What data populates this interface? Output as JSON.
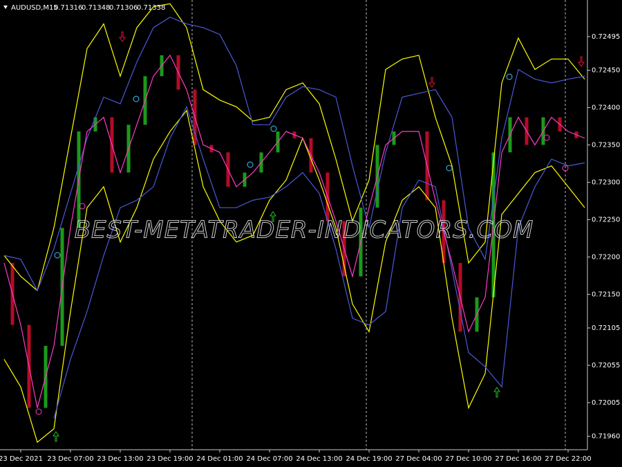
{
  "chart_data": {
    "type": "line",
    "symbol": "AUDUSD,M15",
    "ohlc": [
      0.71316,
      0.71348,
      0.71306,
      0.71338
    ],
    "watermark": "BEST-METATRADER-INDICATORS.COM",
    "categories": [
      null,
      "23 Dec 2021",
      null,
      null,
      "23 Dec 07:00",
      null,
      null,
      "23 Dec 13:00",
      null,
      null,
      "23 Dec 19:00",
      null,
      null,
      "24 Dec 01:00",
      null,
      null,
      "24 Dec 07:00",
      null,
      null,
      "24 Dec 13:00",
      null,
      null,
      "24 Dec 19:00",
      null,
      null,
      "27 Dec 04:00",
      null,
      null,
      "27 Dec 10:00",
      null,
      null,
      "27 Dec 16:00",
      null,
      null,
      "27 Dec 22:00",
      null
    ],
    "series": [
      {
        "color": "#ffff00",
        "values": [
          0.72202,
          0.72174,
          0.72155,
          0.72239,
          0.72359,
          0.72479,
          0.72512,
          0.72442,
          0.72507,
          0.72535,
          0.72539,
          0.72507,
          0.72424,
          0.7241,
          0.72401,
          0.72382,
          0.72387,
          0.72424,
          0.72433,
          0.72405,
          0.72331,
          0.72248,
          0.72303,
          0.72451,
          0.72465,
          0.7247,
          0.72387,
          0.72322,
          0.72192,
          0.7222,
          0.72433,
          0.72493,
          0.72451,
          0.72465,
          0.72465,
          0.72438
        ]
      },
      {
        "color": "#ffff00",
        "values": [
          0.72063,
          0.72026,
          0.71952,
          0.7197,
          0.72127,
          0.72266,
          0.72294,
          0.7222,
          0.72266,
          0.72331,
          0.72368,
          0.72396,
          0.72294,
          0.72248,
          0.7222,
          0.72229,
          0.72276,
          0.72303,
          0.72359,
          0.72303,
          0.72239,
          0.72137,
          0.721,
          0.7222,
          0.72276,
          0.72294,
          0.72266,
          0.72118,
          0.71998,
          0.72044,
          0.72257,
          0.72285,
          0.72313,
          0.72322,
          0.72294,
          0.72266
        ]
      },
      {
        "color": "#4a5ad8",
        "values": [
          0.72202,
          0.72197,
          0.72155,
          0.72211,
          0.72285,
          0.72359,
          0.72414,
          0.72405,
          0.72461,
          0.72507,
          0.72521,
          0.72512,
          0.72507,
          0.72498,
          0.72456,
          0.72377,
          0.72377,
          0.72414,
          0.72428,
          0.72424,
          0.72414,
          0.72322,
          0.72239,
          0.7234,
          0.72414,
          0.72419,
          0.72424,
          0.72387,
          0.72239,
          0.72197,
          0.72359,
          0.72451,
          0.72438,
          0.72433,
          0.72438,
          0.72442
        ]
      },
      {
        "color": "#4a5ad8",
        "values": [
          null,
          null,
          null,
          0.71984,
          0.72063,
          0.72127,
          0.72202,
          0.72266,
          0.72276,
          0.72294,
          0.72359,
          0.72401,
          0.72331,
          0.72266,
          0.72266,
          0.72276,
          0.7228,
          0.72294,
          0.72313,
          0.72285,
          0.72211,
          0.72118,
          0.72109,
          0.72127,
          0.72266,
          0.72303,
          0.72294,
          0.72183,
          0.72072,
          0.72053,
          0.72026,
          0.72239,
          0.72294,
          0.72331,
          0.72322,
          0.72326
        ]
      },
      {
        "color": "#ff3cc8",
        "values": [
          0.72192,
          0.72109,
          0.71998,
          0.72081,
          0.72239,
          0.72368,
          0.72387,
          0.72313,
          0.72377,
          0.72442,
          0.7247,
          0.72424,
          0.7235,
          0.7234,
          0.72294,
          0.72313,
          0.7234,
          0.72368,
          0.72359,
          0.72313,
          0.72248,
          0.72174,
          0.72266,
          0.7235,
          0.72368,
          0.72368,
          0.72276,
          0.72192,
          0.721,
          0.72146,
          0.7234,
          0.72387,
          0.7235,
          0.72387,
          0.72368,
          0.72359
        ]
      }
    ],
    "up_color": "#22c022",
    "down_color": "#e01030",
    "ylim": [
      0.71942,
      0.72544
    ],
    "yticks": [
      0.72495,
      {
        "value": 0.7245,
        "label": "0.72450"
      },
      {
        "value": 0.724,
        "label": "0.72400"
      },
      {
        "value": 0.7235,
        "label": "0.72350"
      },
      {
        "value": 0.723,
        "label": "0.72300"
      },
      {
        "value": 0.7225,
        "label": "0.72250"
      },
      {
        "value": 0.722,
        "label": "0.72200"
      },
      {
        "value": 0.7215,
        "label": "0.72150"
      },
      0.72105,
      0.72055,
      0.72005,
      {
        "value": 0.7196,
        "label": "0.71960"
      }
    ],
    "grid": false
  }
}
